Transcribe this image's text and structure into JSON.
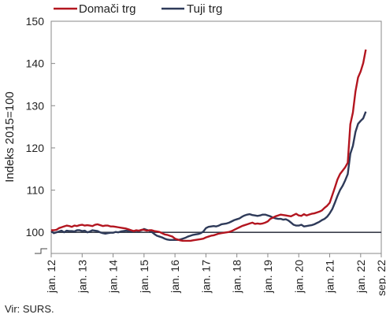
{
  "chart_data": {
    "type": "line",
    "ylabel": "Indeks 2015=100",
    "ylim": [
      95,
      150
    ],
    "yticks": [
      100,
      110,
      120,
      130,
      140,
      150
    ],
    "ytick_labels": [
      "100",
      "110",
      "120",
      "130",
      "140",
      "150"
    ],
    "xlim": [
      0,
      128
    ],
    "xtick_labels": [
      "jan. 12",
      "jan. 13",
      "jan. 14",
      "jan. 15",
      "jan. 16",
      "jan. 17",
      "jan. 18",
      "jan. 19",
      "jan. 20",
      "jan. 21",
      "jan. 22",
      "sep. 22"
    ],
    "xtick_positions": [
      0,
      12,
      24,
      36,
      48,
      60,
      72,
      84,
      96,
      108,
      120,
      128
    ],
    "reference_line": 100,
    "legend_position": "top",
    "source": "Vir: SURS.",
    "series": [
      {
        "name": "Domači trg",
        "color": "#b3151f",
        "values": [
          100.5,
          100.5,
          100.6,
          101.0,
          101.2,
          101.4,
          101.6,
          101.5,
          101.3,
          101.6,
          101.5,
          101.7,
          101.8,
          101.6,
          101.7,
          101.6,
          101.5,
          101.8,
          101.9,
          101.7,
          101.5,
          101.6,
          101.6,
          101.4,
          101.4,
          101.3,
          101.2,
          101.1,
          101.0,
          100.9,
          100.7,
          100.5,
          100.3,
          100.5,
          100.4,
          100.6,
          100.6,
          100.4,
          100.5,
          100.5,
          100.3,
          100.2,
          100.1,
          99.8,
          99.5,
          99.4,
          99.2,
          99.0,
          98.5,
          98.3,
          98.1,
          98.0,
          98.0,
          98.0,
          98.0,
          98.1,
          98.2,
          98.3,
          98.4,
          98.5,
          98.8,
          99.0,
          99.2,
          99.3,
          99.5,
          99.7,
          99.8,
          99.9,
          100.0,
          100.1,
          100.3,
          100.6,
          100.9,
          101.2,
          101.5,
          101.7,
          101.9,
          102.1,
          102.3,
          102.0,
          102.1,
          102.0,
          102.1,
          102.3,
          102.6,
          103.2,
          103.5,
          103.8,
          104.0,
          104.2,
          104.1,
          104.0,
          103.9,
          103.8,
          104.1,
          104.4,
          104.0,
          103.9,
          104.3,
          104.0,
          104.2,
          104.4,
          104.5,
          104.7,
          104.9,
          105.2,
          105.8,
          106.3,
          107.0,
          108.8,
          110.6,
          112.5,
          113.8,
          114.6,
          115.4,
          116.5,
          125.6,
          128.4,
          133.4,
          136.7,
          138.1,
          140.1,
          143.3
        ]
      },
      {
        "name": "Tuji trg",
        "color": "#2e3a59",
        "values": [
          100.3,
          99.8,
          100.0,
          100.2,
          100.4,
          100.0,
          100.4,
          100.3,
          100.3,
          100.2,
          100.5,
          100.5,
          100.3,
          100.4,
          100.0,
          100.2,
          100.5,
          100.4,
          100.3,
          100.0,
          99.8,
          99.7,
          99.8,
          99.9,
          99.9,
          100.1,
          100.0,
          100.2,
          100.3,
          100.4,
          100.3,
          100.2,
          100.3,
          100.4,
          100.3,
          100.5,
          100.8,
          100.6,
          100.4,
          100.1,
          99.6,
          99.2,
          99.0,
          98.8,
          98.5,
          98.3,
          98.2,
          98.2,
          98.2,
          98.2,
          98.3,
          98.5,
          98.7,
          99.0,
          99.2,
          99.4,
          99.5,
          99.6,
          99.8,
          100.2,
          101.0,
          101.3,
          101.4,
          101.5,
          101.4,
          101.6,
          101.9,
          102.0,
          102.1,
          102.3,
          102.6,
          102.9,
          103.1,
          103.3,
          103.7,
          104.0,
          104.2,
          104.3,
          104.1,
          104.0,
          103.9,
          104.0,
          104.2,
          104.2,
          104.0,
          103.8,
          103.5,
          103.3,
          103.2,
          103.2,
          103.0,
          103.1,
          102.8,
          102.3,
          101.8,
          101.6,
          101.6,
          101.8,
          101.4,
          101.5,
          101.6,
          101.7,
          101.9,
          102.2,
          102.5,
          102.9,
          103.2,
          103.7,
          104.5,
          105.5,
          107.0,
          108.6,
          110.0,
          111.0,
          112.3,
          113.8,
          118.6,
          120.5,
          123.8,
          125.7,
          126.4,
          127.0,
          128.6
        ]
      }
    ]
  }
}
